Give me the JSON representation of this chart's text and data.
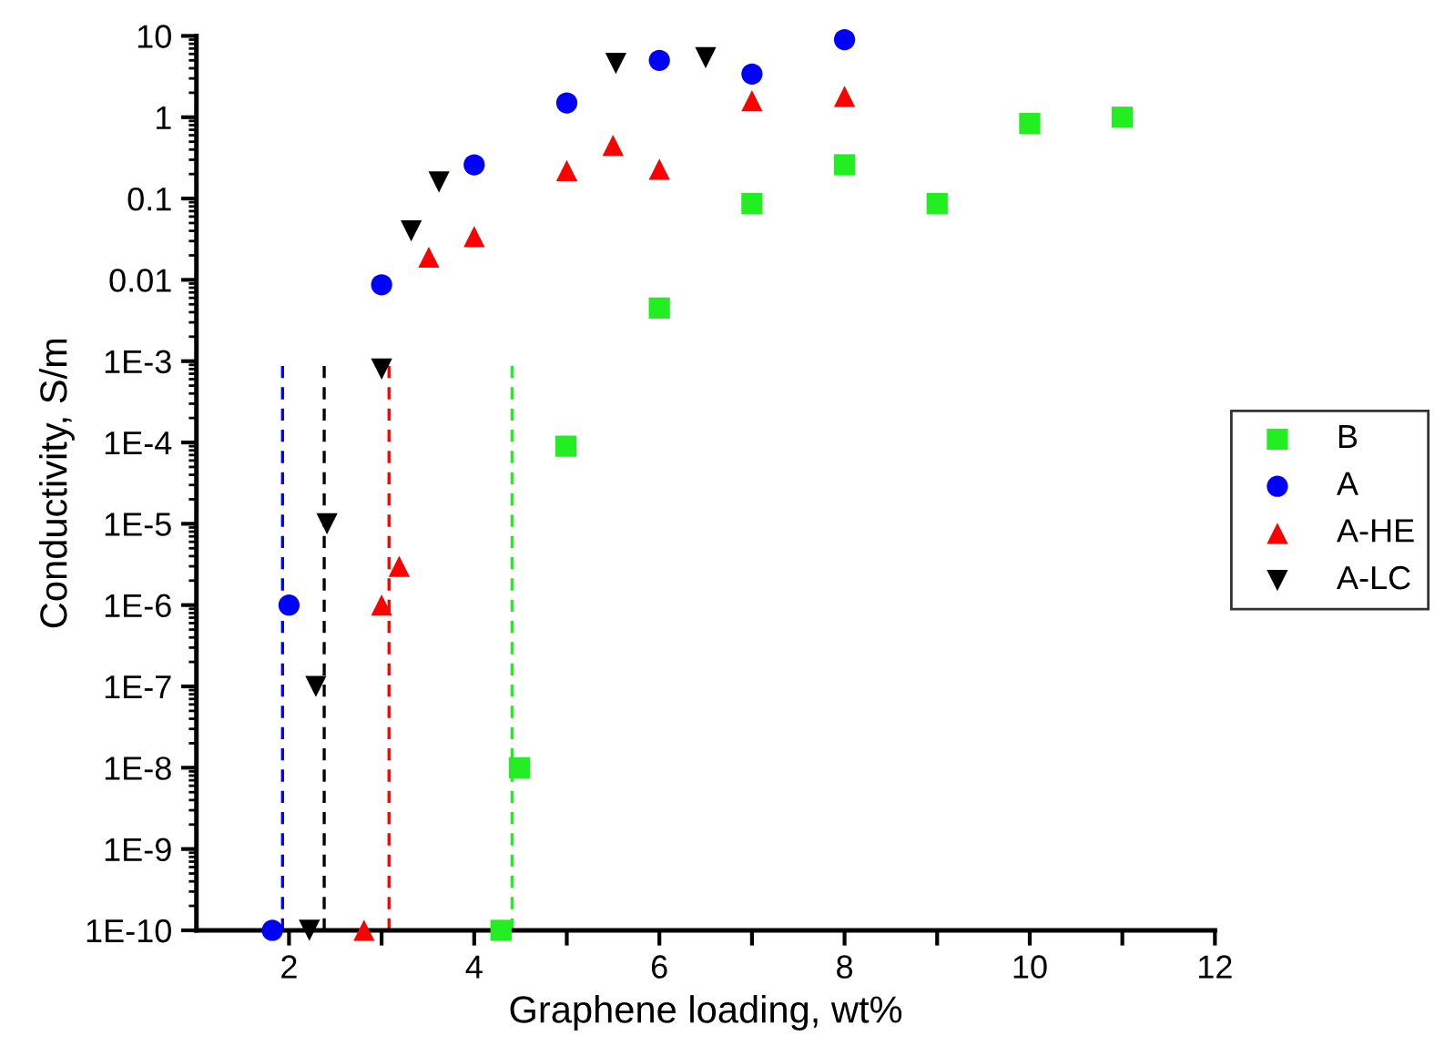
{
  "chart_data": {
    "type": "scatter",
    "xlabel": "Graphene loading, wt%",
    "ylabel": "Conductivity, S/m",
    "log": "y",
    "xlim": [
      1,
      12
    ],
    "ylim": [
      1e-10,
      10
    ],
    "xticks": [
      2,
      {
        "value": 3,
        "label": null
      },
      4,
      {
        "value": 5,
        "label": null
      },
      6,
      {
        "value": 7,
        "label": null
      },
      8,
      {
        "value": 9,
        "label": null
      },
      10,
      {
        "value": 11,
        "label": null
      },
      12
    ],
    "yticks": [
      {
        "value": 1e-10,
        "label": "1E-10"
      },
      {
        "value": 1e-09,
        "label": "1E-9"
      },
      {
        "value": 1e-08,
        "label": "1E-8"
      },
      {
        "value": 1e-07,
        "label": "1E-7"
      },
      {
        "value": 1e-06,
        "label": "1E-6"
      },
      {
        "value": 1e-05,
        "label": "1E-5"
      },
      {
        "value": 0.0001,
        "label": "1E-4"
      },
      {
        "value": 0.001,
        "label": "1E-3"
      },
      {
        "value": 0.01,
        "label": "0.01"
      },
      {
        "value": 0.1,
        "label": "0.1"
      },
      1,
      10
    ],
    "grid": false,
    "legend": "right",
    "series": [
      {
        "name": "B",
        "color": "#22ee22",
        "marker": "square",
        "x": [
          4.29,
          4.49,
          4.99,
          6.0,
          7.0,
          8.0,
          9.0,
          10.0,
          11.0
        ],
        "values": [
          1e-10,
          1e-08,
          9e-05,
          0.0045,
          0.087,
          0.26,
          0.087,
          0.84,
          1.0
        ]
      },
      {
        "name": "A",
        "color": "#0000ff",
        "marker": "circle",
        "x": [
          1.82,
          2.0,
          3.0,
          4.0,
          5.0,
          6.0,
          7.0,
          8.0
        ],
        "values": [
          1e-10,
          1e-06,
          0.0087,
          0.26,
          1.5,
          5.0,
          3.4,
          9.0
        ]
      },
      {
        "name": "A-HE",
        "color": "#ff0000",
        "marker": "triangle",
        "x": [
          2.81,
          3.0,
          3.19,
          3.51,
          4.0,
          5.0,
          5.5,
          6.0,
          7.0,
          8.0
        ],
        "values": [
          1e-10,
          1e-06,
          3e-06,
          0.019,
          0.034,
          0.22,
          0.45,
          0.23,
          1.6,
          1.8
        ]
      },
      {
        "name": "A-LC",
        "color": "#000000",
        "marker": "triangle_down",
        "x": [
          2.22,
          2.29,
          2.41,
          3.0,
          3.32,
          3.62,
          5.53,
          6.5
        ],
        "values": [
          1e-10,
          1e-07,
          1e-05,
          0.0008,
          0.04,
          0.16,
          4.6,
          5.4
        ]
      },
      {
        "type": "line",
        "color": "#0000ff",
        "line_style": "dashed",
        "marker": "none",
        "x": [
          1.93,
          1.93
        ],
        "values": [
          1e-10,
          0.001
        ]
      },
      {
        "type": "line",
        "color": "#000000",
        "line_style": "dashed",
        "marker": "none",
        "x": [
          2.38,
          2.38
        ],
        "values": [
          1e-10,
          0.001
        ]
      },
      {
        "type": "line",
        "color": "#ff0000",
        "line_style": "dashed",
        "marker": "none",
        "x": [
          3.08,
          3.08
        ],
        "values": [
          1e-10,
          0.001
        ]
      },
      {
        "type": "line",
        "color": "#22ee22",
        "line_style": "dashed",
        "marker": "none",
        "x": [
          4.41,
          4.41
        ],
        "values": [
          1e-10,
          0.001
        ]
      }
    ]
  }
}
